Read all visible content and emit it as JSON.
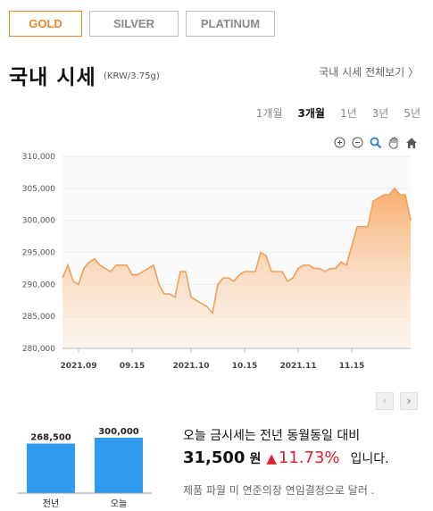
{
  "tabs": [
    {
      "label": "GOLD",
      "active": true
    },
    {
      "label": "SILVER",
      "active": false
    },
    {
      "label": "PLATINUM",
      "active": false
    }
  ],
  "header": {
    "title": "국내 시세",
    "unit": "(KRW/3.75g)",
    "view_all": "국내 시세 전체보기 〉"
  },
  "ranges": [
    {
      "label": "1개월",
      "active": false
    },
    {
      "label": "3개월",
      "active": true
    },
    {
      "label": "1년",
      "active": false
    },
    {
      "label": "3년",
      "active": false
    },
    {
      "label": "5년",
      "active": false
    }
  ],
  "toolbar_icons": [
    "zoom-in-icon",
    "zoom-out-icon",
    "magnify-icon",
    "pan-hand-icon",
    "home-icon"
  ],
  "colors": {
    "accent": "#e8862b",
    "line": "#f0a05a",
    "bar": "#2e9bf0",
    "up": "#e0202a"
  },
  "chart_data": {
    "type": "area",
    "y_ticks": [
      "310,000",
      "305,000",
      "300,000",
      "295,000",
      "290,000",
      "285,000",
      "280,000"
    ],
    "ylim": [
      280000,
      310000
    ],
    "x_ticks": [
      "2021.09",
      "09.15",
      "2021.10",
      "10.15",
      "2021.11",
      "11.15"
    ],
    "x_tick_positions": [
      3,
      13,
      24,
      34,
      44,
      54
    ],
    "values": [
      291000,
      293000,
      290500,
      290000,
      292500,
      293500,
      294000,
      293000,
      292500,
      292000,
      293000,
      293000,
      293000,
      291500,
      291500,
      292000,
      292500,
      293000,
      290000,
      288500,
      288500,
      288000,
      292000,
      292000,
      288000,
      287500,
      287000,
      286500,
      285500,
      290000,
      291000,
      291000,
      290500,
      291500,
      292000,
      292000,
      292000,
      295000,
      294500,
      292000,
      292000,
      292000,
      290500,
      291000,
      292500,
      293000,
      293000,
      292500,
      292500,
      292000,
      292500,
      292500,
      293500,
      293000,
      296000,
      299000,
      299000,
      299000,
      303000,
      303500,
      304000,
      304000,
      305000,
      304000,
      304000,
      300000
    ]
  },
  "comparison": {
    "bars": [
      {
        "label": "전년",
        "value": 268500,
        "value_label": "268,500"
      },
      {
        "label": "오늘",
        "value": 300000,
        "value_label": "300,000"
      }
    ]
  },
  "summary": {
    "line1": "오늘 금시세는 전년 동월동일 대비",
    "diff": "31,500",
    "won": "원",
    "arrow": "▲",
    "percent": "11.73%",
    "suffix": "입니다.",
    "note": "제품 파월 미 연준의장 연임결정으로 달러 ."
  }
}
